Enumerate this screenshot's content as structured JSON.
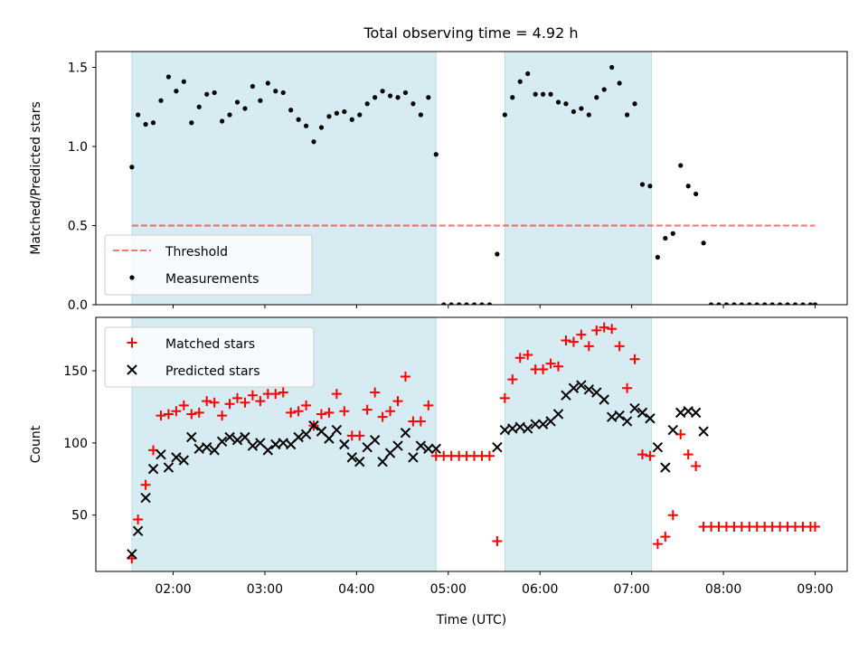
{
  "title": "Total observing time = 4.92 h",
  "colors": {
    "shade": "#add8e6",
    "threshold": "#ff0000",
    "measurements": "#000000",
    "matched": "#ff0000",
    "predicted": "#000000"
  },
  "chart_data": [
    {
      "type": "scatter",
      "ylabel": "Matched/Predicted stars",
      "xlabel": "",
      "ylim": [
        0,
        1.6
      ],
      "yticks": [
        0.0,
        0.5,
        1.0,
        1.5
      ],
      "ytick_labels": [
        "0.0",
        "0.5",
        "1.0",
        "1.5"
      ],
      "xticks": [
        "02:00",
        "03:00",
        "04:00",
        "05:00",
        "06:00",
        "07:00",
        "08:00",
        "09:00"
      ],
      "grid": false,
      "legend_position": "lower-left",
      "shaded_spans": [
        [
          "01:33",
          "04:52"
        ],
        [
          "05:37",
          "07:13"
        ]
      ],
      "threshold": {
        "name": "Threshold",
        "value": 0.5,
        "x_range": [
          "01:33",
          "09:00"
        ]
      },
      "series": [
        {
          "name": "Measurements",
          "x": [
            "01:33",
            "01:37",
            "01:42",
            "01:47",
            "01:52",
            "01:57",
            "02:02",
            "02:07",
            "02:12",
            "02:17",
            "02:22",
            "02:27",
            "02:32",
            "02:37",
            "02:42",
            "02:47",
            "02:52",
            "02:57",
            "03:02",
            "03:07",
            "03:12",
            "03:17",
            "03:22",
            "03:27",
            "03:32",
            "03:37",
            "03:42",
            "03:47",
            "03:52",
            "03:57",
            "04:02",
            "04:07",
            "04:12",
            "04:17",
            "04:22",
            "04:27",
            "04:32",
            "04:37",
            "04:42",
            "04:47",
            "04:52",
            "04:57",
            "05:02",
            "05:07",
            "05:12",
            "05:17",
            "05:22",
            "05:27",
            "05:32",
            "05:37",
            "05:42",
            "05:47",
            "05:52",
            "05:57",
            "06:02",
            "06:07",
            "06:12",
            "06:17",
            "06:22",
            "06:27",
            "06:32",
            "06:37",
            "06:42",
            "06:47",
            "06:52",
            "06:57",
            "07:02",
            "07:07",
            "07:12",
            "07:17",
            "07:22",
            "07:27",
            "07:32",
            "07:37",
            "07:42",
            "07:47",
            "07:52",
            "07:57",
            "08:02",
            "08:07",
            "08:12",
            "08:17",
            "08:22",
            "08:27",
            "08:32",
            "08:37",
            "08:42",
            "08:47",
            "08:52",
            "08:57",
            "09:00"
          ],
          "values": [
            0.87,
            1.2,
            1.14,
            1.15,
            1.29,
            1.44,
            1.35,
            1.41,
            1.15,
            1.25,
            1.33,
            1.34,
            1.16,
            1.2,
            1.28,
            1.24,
            1.38,
            1.29,
            1.4,
            1.35,
            1.34,
            1.23,
            1.17,
            1.13,
            1.03,
            1.12,
            1.19,
            1.21,
            1.22,
            1.17,
            1.2,
            1.27,
            1.31,
            1.35,
            1.32,
            1.31,
            1.34,
            1.27,
            1.2,
            1.31,
            0.95,
            0.0,
            0.0,
            0.0,
            0.0,
            0.0,
            0.0,
            0.0,
            0.32,
            1.2,
            1.31,
            1.41,
            1.46,
            1.33,
            1.33,
            1.33,
            1.28,
            1.27,
            1.22,
            1.24,
            1.2,
            1.31,
            1.36,
            1.5,
            1.4,
            1.2,
            1.27,
            0.76,
            0.75,
            0.3,
            0.42,
            0.45,
            0.88,
            0.75,
            0.7,
            0.39,
            0.0,
            0.0,
            0.0,
            0.0,
            0.0,
            0.0,
            0.0,
            0.0,
            0.0,
            0.0,
            0.0,
            0.0,
            0.0,
            0.0,
            0.0
          ]
        }
      ]
    },
    {
      "type": "scatter",
      "ylabel": "Count",
      "xlabel": "Time (UTC)",
      "ylim": [
        11,
        187
      ],
      "yticks": [
        50,
        100,
        150
      ],
      "ytick_labels": [
        "50",
        "100",
        "150"
      ],
      "xticks": [
        "02:00",
        "03:00",
        "04:00",
        "05:00",
        "06:00",
        "07:00",
        "08:00",
        "09:00"
      ],
      "grid": false,
      "legend_position": "upper-left",
      "shaded_spans": [
        [
          "01:33",
          "04:52"
        ],
        [
          "05:37",
          "07:13"
        ]
      ],
      "series": [
        {
          "name": "Matched stars",
          "marker": "+",
          "x": [
            "01:33",
            "01:37",
            "01:42",
            "01:47",
            "01:52",
            "01:57",
            "02:02",
            "02:07",
            "02:12",
            "02:17",
            "02:22",
            "02:27",
            "02:32",
            "02:37",
            "02:42",
            "02:47",
            "02:52",
            "02:57",
            "03:02",
            "03:07",
            "03:12",
            "03:17",
            "03:22",
            "03:27",
            "03:32",
            "03:37",
            "03:42",
            "03:47",
            "03:52",
            "03:57",
            "04:02",
            "04:07",
            "04:12",
            "04:17",
            "04:22",
            "04:27",
            "04:32",
            "04:37",
            "04:42",
            "04:47",
            "04:52",
            "04:57",
            "05:02",
            "05:07",
            "05:12",
            "05:17",
            "05:22",
            "05:27",
            "05:32",
            "05:37",
            "05:42",
            "05:47",
            "05:52",
            "05:57",
            "06:02",
            "06:07",
            "06:12",
            "06:17",
            "06:22",
            "06:27",
            "06:32",
            "06:37",
            "06:42",
            "06:47",
            "06:52",
            "06:57",
            "07:02",
            "07:07",
            "07:12",
            "07:17",
            "07:22",
            "07:27",
            "07:32",
            "07:37",
            "07:42",
            "07:47",
            "07:52",
            "07:57",
            "08:02",
            "08:07",
            "08:12",
            "08:17",
            "08:22",
            "08:27",
            "08:32",
            "08:37",
            "08:42",
            "08:47",
            "08:52",
            "08:57",
            "09:00"
          ],
          "values": [
            20,
            47,
            71,
            95,
            119,
            120,
            122,
            126,
            120,
            121,
            129,
            128,
            119,
            127,
            131,
            128,
            133,
            129,
            134,
            134,
            135,
            121,
            122,
            126,
            112,
            120,
            121,
            134,
            122,
            105,
            105,
            123,
            135,
            118,
            122,
            129,
            146,
            115,
            115,
            126,
            91,
            91,
            91,
            91,
            91,
            91,
            91,
            91,
            32,
            131,
            144,
            159,
            161,
            151,
            151,
            155,
            153,
            171,
            170,
            175,
            167,
            178,
            180,
            179,
            167,
            138,
            158,
            92,
            91,
            30,
            35,
            50,
            106,
            92,
            84,
            42,
            42,
            42,
            42,
            42,
            42,
            42,
            42,
            42,
            42,
            42,
            42,
            42,
            42,
            42,
            42
          ]
        },
        {
          "name": "Predicted stars",
          "marker": "x",
          "x": [
            "01:33",
            "01:37",
            "01:42",
            "01:47",
            "01:52",
            "01:57",
            "02:02",
            "02:07",
            "02:12",
            "02:17",
            "02:22",
            "02:27",
            "02:32",
            "02:37",
            "02:42",
            "02:47",
            "02:52",
            "02:57",
            "03:02",
            "03:07",
            "03:12",
            "03:17",
            "03:22",
            "03:27",
            "03:32",
            "03:37",
            "03:42",
            "03:47",
            "03:52",
            "03:57",
            "04:02",
            "04:07",
            "04:12",
            "04:17",
            "04:22",
            "04:27",
            "04:32",
            "04:37",
            "04:42",
            "04:47",
            "04:52",
            "05:32",
            "05:37",
            "05:42",
            "05:47",
            "05:52",
            "05:57",
            "06:02",
            "06:07",
            "06:12",
            "06:17",
            "06:22",
            "06:27",
            "06:32",
            "06:37",
            "06:42",
            "06:47",
            "06:52",
            "06:57",
            "07:02",
            "07:07",
            "07:12",
            "07:17",
            "07:22",
            "07:27",
            "07:32",
            "07:37",
            "07:42",
            "07:47"
          ],
          "values": [
            23,
            39,
            62,
            82,
            92,
            83,
            90,
            88,
            104,
            96,
            97,
            95,
            101,
            104,
            102,
            104,
            98,
            100,
            95,
            99,
            100,
            99,
            104,
            106,
            112,
            108,
            103,
            109,
            99,
            90,
            87,
            97,
            102,
            87,
            93,
            98,
            107,
            90,
            98,
            96,
            96,
            97,
            109,
            110,
            111,
            110,
            113,
            113,
            115,
            120,
            133,
            138,
            140,
            137,
            135,
            130,
            118,
            119,
            115,
            124,
            121,
            117,
            97,
            83,
            109,
            121,
            122,
            121,
            108
          ]
        }
      ]
    }
  ]
}
